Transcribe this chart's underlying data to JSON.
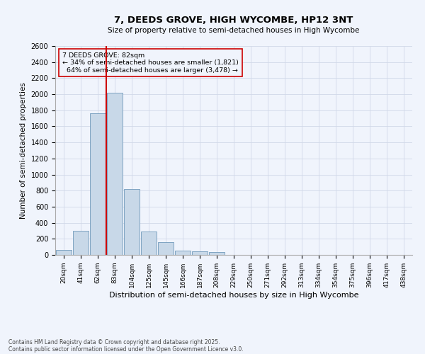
{
  "title": "7, DEEDS GROVE, HIGH WYCOMBE, HP12 3NT",
  "subtitle": "Size of property relative to semi-detached houses in High Wycombe",
  "xlabel": "Distribution of semi-detached houses by size in High Wycombe",
  "ylabel": "Number of semi-detached properties",
  "categories": [
    "20sqm",
    "41sqm",
    "62sqm",
    "83sqm",
    "104sqm",
    "125sqm",
    "145sqm",
    "166sqm",
    "187sqm",
    "208sqm",
    "229sqm",
    "250sqm",
    "271sqm",
    "292sqm",
    "313sqm",
    "334sqm",
    "354sqm",
    "375sqm",
    "396sqm",
    "417sqm",
    "438sqm"
  ],
  "values": [
    60,
    300,
    1760,
    2020,
    820,
    290,
    155,
    50,
    45,
    35,
    0,
    0,
    0,
    0,
    0,
    0,
    0,
    0,
    0,
    0,
    0
  ],
  "bar_color": "#c8d8e8",
  "bar_edge_color": "#5a8ab0",
  "marker_label": "7 DEEDS GROVE: 82sqm",
  "smaller_pct": "34%",
  "smaller_count": "1,821",
  "larger_pct": "64%",
  "larger_count": "3,478",
  "ylim": [
    0,
    2600
  ],
  "yticks": [
    0,
    200,
    400,
    600,
    800,
    1000,
    1200,
    1400,
    1600,
    1800,
    2000,
    2200,
    2400,
    2600
  ],
  "annotation_box_color": "#cc0000",
  "vline_color": "#cc0000",
  "grid_color": "#d0d8e8",
  "background_color": "#f0f4fc",
  "footer_line1": "Contains HM Land Registry data © Crown copyright and database right 2025.",
  "footer_line2": "Contains public sector information licensed under the Open Government Licence v3.0."
}
